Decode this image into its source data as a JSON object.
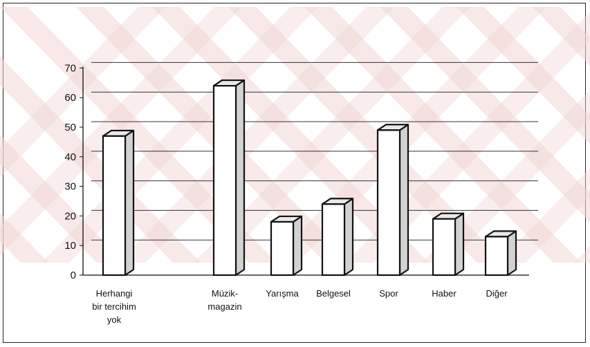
{
  "chart_data": {
    "type": "bar",
    "style": "3d-columns",
    "title": "",
    "xlabel": "",
    "ylabel": "",
    "ylim": [
      0,
      70
    ],
    "yticks": [
      0,
      10,
      20,
      30,
      40,
      50,
      60,
      70
    ],
    "grid": true,
    "legend": "none",
    "categories": [
      [
        "Herhangi",
        "bir tercihim",
        "yok"
      ],
      [
        "Müzik-",
        "magazin"
      ],
      [
        "Yarışma"
      ],
      [
        "Belgesel"
      ],
      [
        "Spor"
      ],
      [
        "Haber"
      ],
      [
        "Diğer"
      ]
    ],
    "values": [
      47,
      64,
      18,
      24,
      49,
      19,
      13
    ],
    "colors": {
      "bar_front": "#ffffff",
      "bar_top": "#e9e9e9",
      "bar_side": "#d2d2d2",
      "outline": "#111111",
      "grid": "#333333",
      "watermark": "#f2d6d6"
    }
  }
}
